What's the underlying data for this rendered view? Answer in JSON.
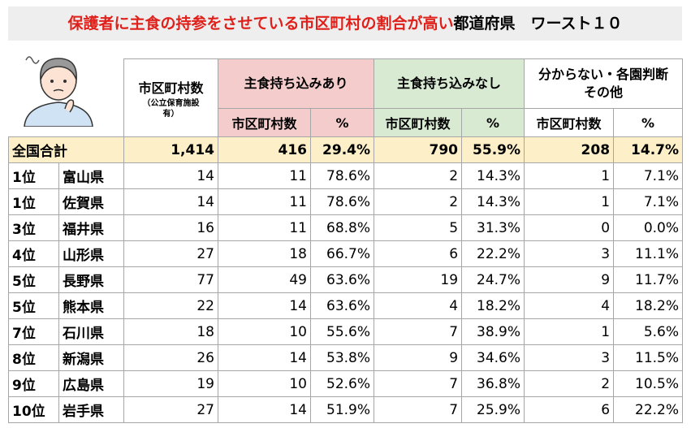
{
  "title": {
    "highlight": "保護者に主食の持参をさせている市区町村の割合が高い",
    "rest": "都道府県　ワースト１０"
  },
  "table": {
    "header": {
      "municipalities": "市区町村数",
      "municipalities_note": "（公立保育施設有）",
      "groups": [
        "主食持ち込みあり",
        "主食持ち込みなし",
        "分からない・各園判断その他"
      ],
      "subheaders": [
        "市区町村数",
        "%",
        "市区町村数",
        "%",
        "市区町村数",
        "%"
      ]
    },
    "total": {
      "label": "全国合計",
      "cells": [
        "1,414",
        "416",
        "29.4%",
        "790",
        "55.9%",
        "208",
        "14.7%"
      ]
    },
    "rows": [
      {
        "rank": "1位",
        "prefecture": "富山県",
        "cells": [
          "14",
          "11",
          "78.6%",
          "2",
          "14.3%",
          "1",
          "7.1%"
        ]
      },
      {
        "rank": "1位",
        "prefecture": "佐賀県",
        "cells": [
          "14",
          "11",
          "78.6%",
          "2",
          "14.3%",
          "1",
          "7.1%"
        ]
      },
      {
        "rank": "3位",
        "prefecture": "福井県",
        "cells": [
          "16",
          "11",
          "68.8%",
          "5",
          "31.3%",
          "0",
          "0.0%"
        ]
      },
      {
        "rank": "4位",
        "prefecture": "山形県",
        "cells": [
          "27",
          "18",
          "66.7%",
          "6",
          "22.2%",
          "3",
          "11.1%"
        ]
      },
      {
        "rank": "5位",
        "prefecture": "長野県",
        "cells": [
          "77",
          "49",
          "63.6%",
          "19",
          "24.7%",
          "9",
          "11.7%"
        ]
      },
      {
        "rank": "5位",
        "prefecture": "熊本県",
        "cells": [
          "22",
          "14",
          "63.6%",
          "4",
          "18.2%",
          "4",
          "18.2%"
        ]
      },
      {
        "rank": "7位",
        "prefecture": "石川県",
        "cells": [
          "18",
          "10",
          "55.6%",
          "7",
          "38.9%",
          "1",
          "5.6%"
        ]
      },
      {
        "rank": "8位",
        "prefecture": "新潟県",
        "cells": [
          "26",
          "14",
          "53.8%",
          "9",
          "34.6%",
          "3",
          "11.5%"
        ]
      },
      {
        "rank": "9位",
        "prefecture": "広島県",
        "cells": [
          "19",
          "10",
          "52.6%",
          "7",
          "36.8%",
          "2",
          "10.5%"
        ]
      },
      {
        "rank": "10位",
        "prefecture": "岩手県",
        "cells": [
          "27",
          "14",
          "51.9%",
          "7",
          "25.9%",
          "6",
          "22.2%"
        ]
      }
    ]
  }
}
